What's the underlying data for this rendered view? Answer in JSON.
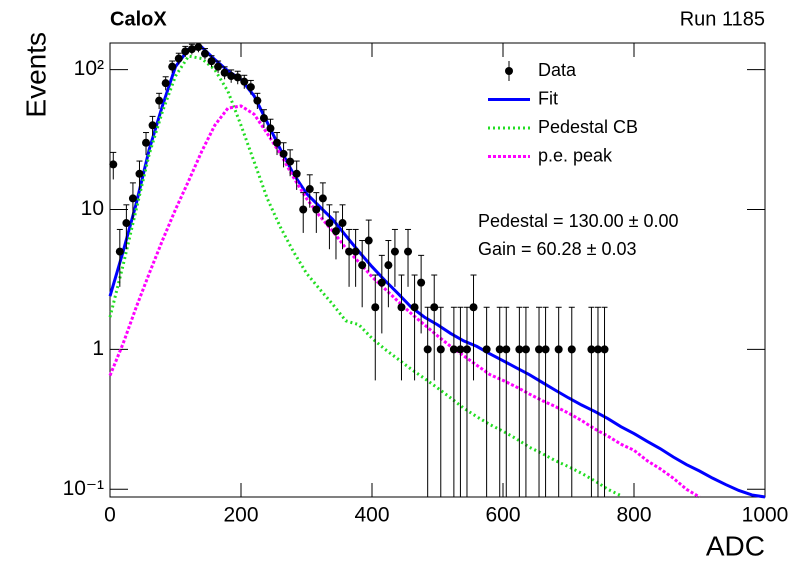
{
  "chart_data": {
    "type": "line",
    "title": "CaloX",
    "subtitle": "Run 1185",
    "x_label": "ADC",
    "y_label": "Events",
    "annotations": [
      "Pedestal = 130.00 ± 0.00",
      "Gain = 60.28 ± 0.03"
    ],
    "log_y": true,
    "legend": "top-right",
    "xlim": [
      0,
      1000
    ],
    "xticks": [
      0,
      200,
      400,
      600,
      800,
      1000
    ],
    "ylim": [
      0.088,
      155
    ],
    "yticks": [
      {
        "value": 0.1,
        "label": "10⁻¹"
      },
      1,
      10,
      {
        "value": 100,
        "label": "10²"
      }
    ],
    "x": [
      0,
      20,
      40,
      60,
      80,
      100,
      120,
      140,
      160,
      180,
      200,
      220,
      240,
      260,
      280,
      300,
      320,
      340,
      360,
      380,
      400,
      420,
      440,
      460,
      480,
      500,
      520,
      540,
      560,
      580,
      600,
      620,
      640,
      660,
      680,
      700,
      720,
      740,
      760,
      780,
      800,
      820,
      840,
      860,
      880,
      900,
      920,
      940,
      960,
      980,
      1000
    ],
    "series": [
      {
        "name": "Data",
        "color": "#000000",
        "type": "errorbar",
        "x": [
          5,
          15,
          25,
          35,
          45,
          55,
          65,
          75,
          85,
          95,
          105,
          115,
          125,
          135,
          145,
          155,
          165,
          175,
          185,
          195,
          205,
          215,
          225,
          235,
          245,
          255,
          265,
          275,
          285,
          295,
          305,
          315,
          325,
          335,
          345,
          355,
          365,
          375,
          385,
          395,
          405,
          415,
          425,
          435,
          445,
          455,
          465,
          475,
          485,
          495,
          505,
          525,
          535,
          545,
          555,
          575,
          595,
          605,
          625,
          635,
          655,
          665,
          685,
          705,
          735,
          745,
          755
        ],
        "values": [
          21,
          5,
          8,
          12,
          18,
          30,
          40,
          60,
          80,
          105,
          120,
          135,
          140,
          145,
          130,
          115,
          105,
          95,
          90,
          88,
          82,
          75,
          60,
          45,
          38,
          30,
          25,
          22,
          18,
          10,
          14,
          10,
          12,
          8,
          7,
          8,
          5,
          5,
          4,
          6,
          2,
          3,
          4,
          5,
          2,
          5,
          2,
          3,
          1,
          2,
          1,
          1,
          1,
          1,
          2,
          1,
          1,
          1,
          1,
          1,
          1,
          1,
          1,
          1,
          1,
          1,
          1
        ],
        "errors": [
          4.6,
          2.2,
          2.8,
          3.5,
          4.2,
          5.5,
          6.3,
          7.7,
          8.9,
          10.2,
          11,
          11.6,
          11.8,
          12,
          11.4,
          10.7,
          10.2,
          9.7,
          9.5,
          9.4,
          9.1,
          8.7,
          7.7,
          6.7,
          6.2,
          5.5,
          5,
          4.7,
          4.2,
          3.2,
          3.7,
          3.2,
          3.5,
          2.8,
          2.6,
          2.8,
          2.2,
          2.2,
          2,
          2.4,
          1.4,
          1.7,
          2,
          2.2,
          1.4,
          2.2,
          1.4,
          1.7,
          1,
          1.4,
          1,
          1,
          1,
          1,
          1.4,
          1,
          1,
          1,
          1,
          1,
          1,
          1,
          1,
          1,
          1,
          1,
          1
        ]
      },
      {
        "name": "Fit",
        "color": "#0000ff",
        "type": "line",
        "dash": "none",
        "values": [
          2.4,
          5,
          11,
          27,
          55,
          105,
          140,
          145,
          118,
          98,
          85,
          65,
          42,
          27,
          18,
          13,
          10.5,
          8.5,
          6.5,
          5,
          3.9,
          3.1,
          2.5,
          2.0,
          1.7,
          1.5,
          1.3,
          1.15,
          1.05,
          0.93,
          0.83,
          0.74,
          0.66,
          0.58,
          0.51,
          0.45,
          0.4,
          0.36,
          0.32,
          0.28,
          0.25,
          0.22,
          0.195,
          0.17,
          0.15,
          0.135,
          0.12,
          0.108,
          0.098,
          0.091,
          0.088
        ]
      },
      {
        "name": "Pedestal CB",
        "color": "#22dd22",
        "type": "line",
        "dash": "2 3",
        "values": [
          1.7,
          4,
          10,
          25,
          50,
          90,
          125,
          120,
          100,
          70,
          40,
          22,
          12,
          7.5,
          5,
          3.5,
          2.7,
          2.1,
          1.6,
          1.5,
          1.2,
          1.0,
          0.85,
          0.72,
          0.62,
          0.53,
          0.45,
          0.38,
          0.33,
          0.29,
          0.26,
          0.23,
          0.2,
          0.18,
          0.16,
          0.145,
          0.13,
          0.115,
          0.1,
          0.09,
          null,
          null,
          null,
          null,
          null,
          null,
          null,
          null,
          null,
          null,
          null
        ]
      },
      {
        "name": "p.e. peak",
        "color": "#ff00ff",
        "type": "line",
        "dash": "3 2",
        "values": [
          0.65,
          1.1,
          2,
          3.5,
          6,
          10,
          16,
          26,
          40,
          53,
          55,
          48,
          35,
          25,
          17,
          12,
          9,
          7,
          5.3,
          4.2,
          3.3,
          2.7,
          2.2,
          1.8,
          1.5,
          1.25,
          1.05,
          0.9,
          0.77,
          0.66,
          0.6,
          0.54,
          0.48,
          0.43,
          0.39,
          0.35,
          0.31,
          0.27,
          0.24,
          0.21,
          0.19,
          0.16,
          0.14,
          0.12,
          0.1,
          0.088,
          null,
          null,
          null,
          null,
          null
        ]
      }
    ]
  }
}
